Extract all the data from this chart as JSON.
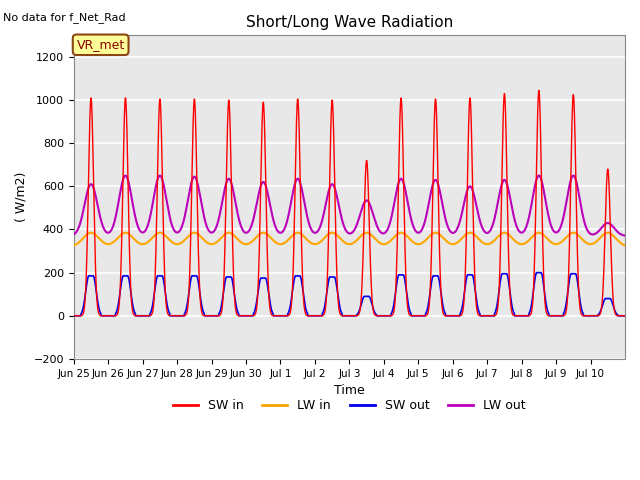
{
  "title": "Short/Long Wave Radiation",
  "xlabel": "Time",
  "ylabel": "( W/m2)",
  "ylim": [
    -200,
    1300
  ],
  "yticks": [
    -200,
    0,
    200,
    400,
    600,
    800,
    1000,
    1200
  ],
  "top_left_text": "No data for f_Net_Rad",
  "legend_box_text": "VR_met",
  "SW_in_color": "#FF0000",
  "LW_in_color": "#FFA500",
  "SW_out_color": "#0000EE",
  "LW_out_color": "#BB00BB",
  "background_color": "#FFFFFF",
  "plot_bg_color": "#E8E8E8",
  "grid_color": "#FFFFFF",
  "figsize": [
    6.4,
    4.8
  ],
  "dpi": 100,
  "day_labels": [
    "Jun 25",
    "Jun 26",
    "Jun 27",
    "Jun 28",
    "Jun 29",
    "Jun 30",
    "Jul 1",
    "Jul 2",
    "Jul 3",
    "Jul 4",
    "Jul 5",
    "Jul 6",
    "Jul 7",
    "Jul 8",
    "Jul 9",
    "Jul 10"
  ],
  "SW_in_peaks": [
    1010,
    1010,
    1005,
    1005,
    1000,
    990,
    1005,
    1000,
    720,
    1010,
    1005,
    1010,
    1030,
    1045,
    1025,
    680
  ],
  "SW_out_peaks": [
    185,
    185,
    185,
    185,
    180,
    175,
    185,
    180,
    90,
    190,
    185,
    190,
    195,
    200,
    195,
    80
  ],
  "LW_out_peaks": [
    610,
    650,
    650,
    645,
    635,
    620,
    635,
    610,
    535,
    635,
    630,
    600,
    630,
    650,
    650,
    430
  ],
  "LW_in_base": 320,
  "LW_in_bump": 65,
  "LW_out_base": 370,
  "SW_sigma": 1.8,
  "SW_out_sigma": 2.2,
  "LW_sigma": 5.5,
  "LW_out_sigma": 4.5
}
